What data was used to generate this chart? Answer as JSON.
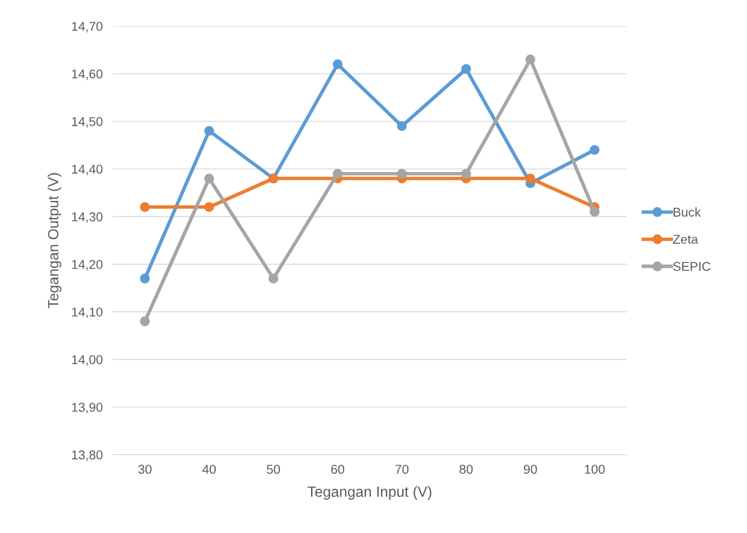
{
  "chart_data": {
    "type": "line",
    "xlabel": "Tegangan Input (V)",
    "ylabel": "Tegangan Output (V)",
    "categories": [
      "30",
      "40",
      "50",
      "60",
      "70",
      "80",
      "90",
      "100"
    ],
    "series": [
      {
        "name": "Buck",
        "color": "#5b9bd5",
        "values": [
          14.17,
          14.48,
          14.38,
          14.62,
          14.49,
          14.61,
          14.37,
          14.44
        ]
      },
      {
        "name": "Zeta",
        "color": "#ed7d31",
        "values": [
          14.32,
          14.32,
          14.38,
          14.38,
          14.38,
          14.38,
          14.38,
          14.32
        ]
      },
      {
        "name": "SEPIC",
        "color": "#a5a5a5",
        "values": [
          14.08,
          14.38,
          14.17,
          14.39,
          14.39,
          14.39,
          14.63,
          14.31
        ]
      }
    ],
    "ylim": [
      13.8,
      14.7
    ],
    "yticks": [
      {
        "value": 13.8,
        "label": "13,80"
      },
      {
        "value": 13.9,
        "label": "13,90"
      },
      {
        "value": 14.0,
        "label": "14,00"
      },
      {
        "value": 14.1,
        "label": "14,10"
      },
      {
        "value": 14.2,
        "label": "14,20"
      },
      {
        "value": 14.3,
        "label": "14,30"
      },
      {
        "value": 14.4,
        "label": "14,40"
      },
      {
        "value": 14.5,
        "label": "14,50"
      },
      {
        "value": 14.6,
        "label": "14,60"
      },
      {
        "value": 14.7,
        "label": "14,70"
      }
    ],
    "grid": "y",
    "legend": "right",
    "marker": "circle",
    "line_style": "solid"
  }
}
